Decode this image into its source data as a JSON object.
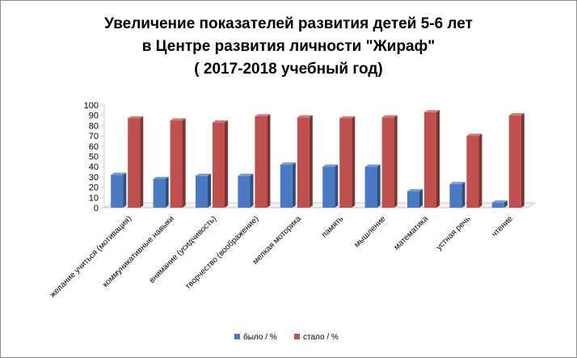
{
  "chart_data": {
    "type": "bar",
    "title_lines": [
      "Увеличение показателей развития детей 5-6 лет",
      "в Центре развития личности \"Жираф\"",
      "( 2017-2018 учебный год)"
    ],
    "categories": [
      "желание учиться (мотивация)",
      "коммуникативные навыки",
      "внимание (усидчивость)",
      "творчество (воображение)",
      "мелкая моторика",
      "память",
      "мышление",
      "математика",
      "устная речь",
      "чтение"
    ],
    "series": [
      {
        "name": "было / %",
        "color": "#4a7ac4",
        "values": [
          32,
          28,
          31,
          31,
          42,
          40,
          40,
          16,
          23,
          5
        ]
      },
      {
        "name": "стало / %",
        "color": "#c0504d",
        "values": [
          87,
          85,
          83,
          89,
          88,
          87,
          88,
          93,
          70,
          90
        ]
      }
    ],
    "ylim": [
      0,
      100
    ],
    "yticks": [
      0,
      10,
      20,
      30,
      40,
      50,
      60,
      70,
      80,
      90,
      100
    ],
    "grid": false,
    "legend_position": "bottom"
  }
}
